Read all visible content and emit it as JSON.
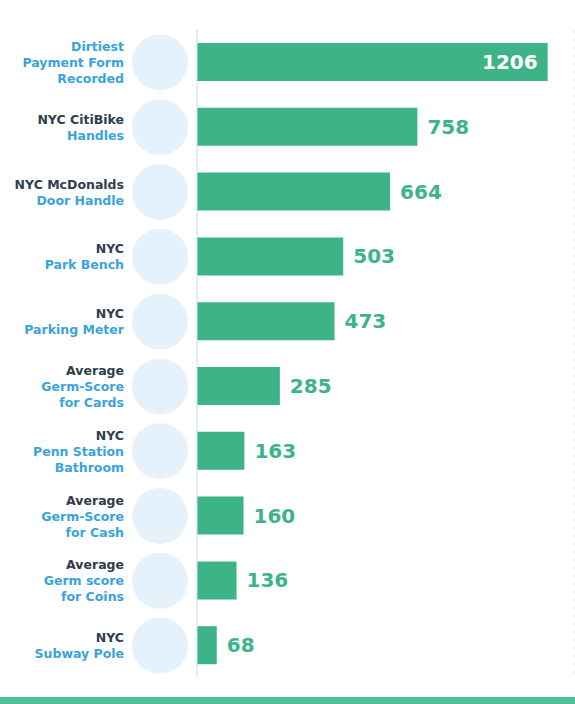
{
  "chart_data": {
    "type": "bar",
    "orientation": "horizontal",
    "categories": [
      "Dirtiest\nPayment Form\nRecorded",
      "NYC CitiBike\nHandles",
      "NYC McDonalds\nDoor Handle",
      "NYC\nPark Bench",
      "NYC\nParking Meter",
      "Average\nGerm-Score\nfor Cards",
      "NYC\nPenn Station\nBathroom",
      "Average\nGerm-Score\nfor Cash",
      "Average\nGerm score\nfor Coins",
      "NYC\nSubway Pole"
    ],
    "values": [
      1206,
      758,
      664,
      503,
      473,
      285,
      163,
      160,
      136,
      68
    ],
    "color": "#3db487",
    "xlim": [
      0,
      1300
    ],
    "xticks": [
      0,
      100,
      200,
      300,
      400,
      500,
      600,
      700,
      800,
      900,
      1000,
      1100,
      1200,
      1300
    ],
    "grid": true,
    "data_labels": true,
    "tick_labels": false
  }
}
